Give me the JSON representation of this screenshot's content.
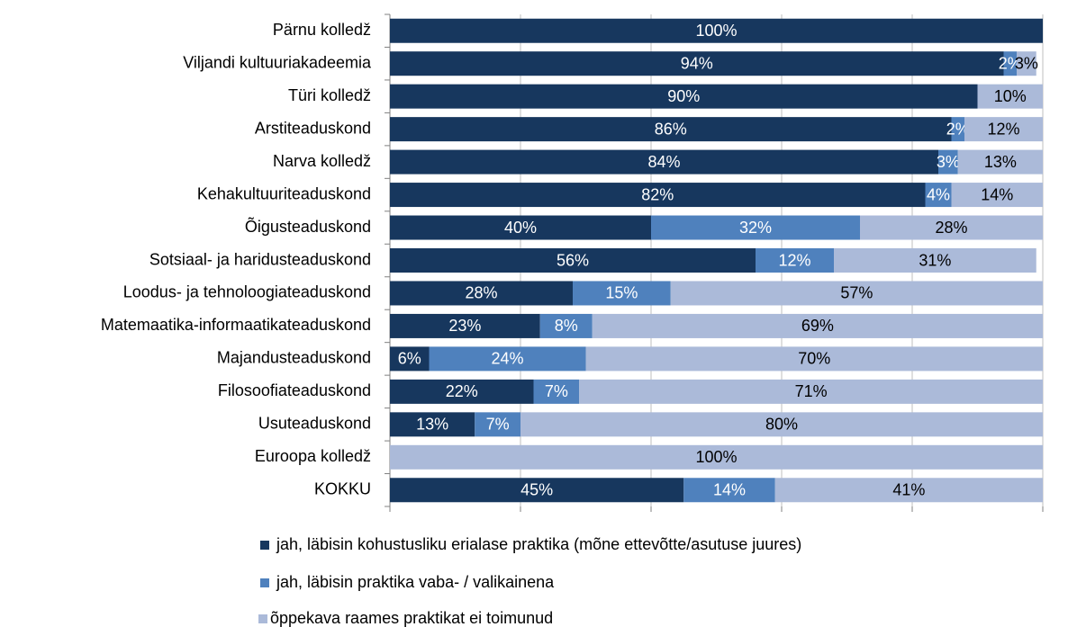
{
  "chart_data": {
    "type": "bar",
    "orientation": "horizontal",
    "stacked": true,
    "categories": [
      "Pärnu kolledž",
      "Viljandi kultuuriakadeemia",
      "Türi kolledž",
      "Arstiteaduskond",
      "Narva kolledž",
      "Kehakultuuriteaduskond",
      "Õigusteaduskond",
      "Sotsiaal- ja haridusteaduskond",
      "Loodus- ja tehnoloogiateaduskond",
      "Matemaatika-informaatikateaduskond",
      "Majandusteaduskond",
      "Filosoofiateaduskond",
      "Usuteaduskond",
      "Euroopa kolledž",
      "KOKKU"
    ],
    "series": [
      {
        "name": "jah, läbisin kohustusliku erialase praktika (mõne ettevõtte/asutuse juures)",
        "color": "#17375e",
        "label_color": "#ffffff",
        "values": [
          100,
          94,
          90,
          86,
          84,
          82,
          40,
          56,
          28,
          23,
          6,
          22,
          13,
          0,
          45
        ],
        "value_labels": [
          "100%",
          "94%",
          "90%",
          "86%",
          "84%",
          "82%",
          "40%",
          "56%",
          "28%",
          "23%",
          "6%",
          "22%",
          "13%",
          null,
          "45%"
        ]
      },
      {
        "name": "jah, läbisin praktika vaba- / valikainena",
        "color": "#4f81bd",
        "label_color": "#ffffff",
        "values": [
          0,
          2,
          0,
          2,
          3,
          4,
          32,
          12,
          15,
          8,
          24,
          7,
          7,
          0,
          14
        ],
        "value_labels": [
          null,
          "2%",
          null,
          "2%",
          "3%",
          "4%",
          "32%",
          "12%",
          "15%",
          "8%",
          "24%",
          "7%",
          "7%",
          null,
          "14%"
        ]
      },
      {
        "name": "õppekava raames praktikat ei toimunud",
        "color": "#abbad9",
        "label_color": "#000000",
        "values": [
          0,
          3,
          10,
          12,
          13,
          14,
          28,
          31,
          57,
          69,
          70,
          71,
          80,
          100,
          41
        ],
        "value_labels": [
          null,
          "3%",
          "10%",
          "12%",
          "13%",
          "14%",
          "28%",
          "31%",
          "57%",
          "69%",
          "70%",
          "71%",
          "80%",
          "100%",
          "41%"
        ]
      }
    ],
    "xlim": [
      0,
      100
    ],
    "xticks": [
      0,
      20,
      40,
      60,
      80,
      100
    ],
    "grid": true,
    "legend": "bottom"
  }
}
